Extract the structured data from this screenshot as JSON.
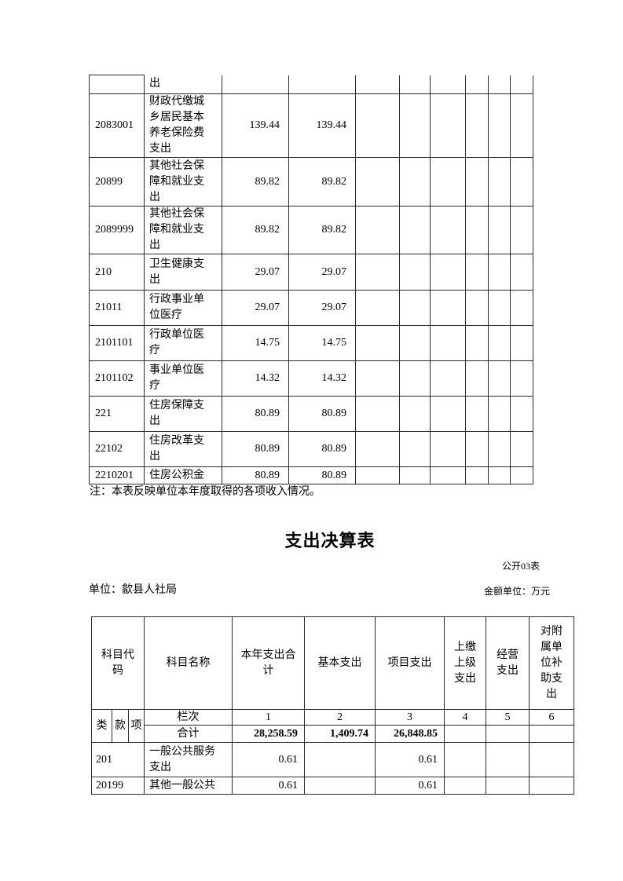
{
  "income_table": {
    "note": "注：本表反映单位本年度取得的各项收入情况。",
    "rows": [
      {
        "code": "",
        "name": "出",
        "v1": "",
        "v2": ""
      },
      {
        "code": "2083001",
        "name": "财政代缴城乡居民基本养老保险费支出",
        "v1": "139.44",
        "v2": "139.44"
      },
      {
        "code": "20899",
        "name": "其他社会保障和就业支出",
        "v1": "89.82",
        "v2": "89.82"
      },
      {
        "code": "2089999",
        "name": "其他社会保障和就业支出",
        "v1": "89.82",
        "v2": "89.82"
      },
      {
        "code": "210",
        "name": "卫生健康支出",
        "v1": "29.07",
        "v2": "29.07"
      },
      {
        "code": "21011",
        "name": "行政事业单位医疗",
        "v1": "29.07",
        "v2": "29.07"
      },
      {
        "code": "2101101",
        "name": "行政单位医疗",
        "v1": "14.75",
        "v2": "14.75"
      },
      {
        "code": "2101102",
        "name": "事业单位医疗",
        "v1": "14.32",
        "v2": "14.32"
      },
      {
        "code": "221",
        "name": "住房保障支出",
        "v1": "80.89",
        "v2": "80.89"
      },
      {
        "code": "22102",
        "name": "住房改革支出",
        "v1": "80.89",
        "v2": "80.89"
      },
      {
        "code": "2210201",
        "name": "住房公积金",
        "v1": "80.89",
        "v2": "80.89"
      }
    ]
  },
  "section_header": {
    "title": "支出决算表",
    "table_code": "公开03表",
    "unit": "单位：歙县人社局",
    "amount_unit": "金额单位：万元"
  },
  "expenditure_table": {
    "columns": [
      "科目代码",
      "科目名称",
      "本年支出合计",
      "基本支出",
      "项目支出",
      "上缴上级支出",
      "经营支出",
      "对附属单位补助支出"
    ],
    "code_parts": [
      "类",
      "款",
      "项"
    ],
    "lanci_label": "栏次",
    "column_numbers": [
      "1",
      "2",
      "3",
      "4",
      "5",
      "6"
    ],
    "total_row": {
      "label": "合计",
      "values": [
        "28,258.59",
        "1,409.74",
        "26,848.85",
        "",
        "",
        ""
      ]
    },
    "rows": [
      {
        "code": "201",
        "name": "一般公共服务支出",
        "values": [
          "0.61",
          "",
          "0.61",
          "",
          "",
          ""
        ]
      },
      {
        "code": "20199",
        "name": "其他一般公共",
        "values": [
          "0.61",
          "",
          "0.61",
          "",
          "",
          ""
        ]
      }
    ]
  }
}
